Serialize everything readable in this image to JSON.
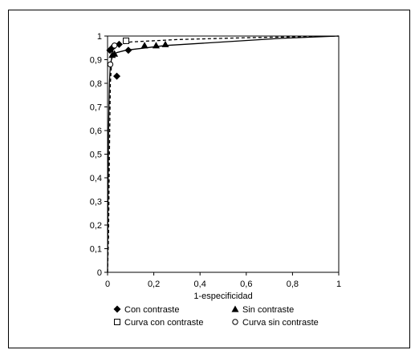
{
  "chart_data": {
    "type": "scatter",
    "title": "",
    "xlabel": "1-especificidad",
    "ylabel": "",
    "xlim": [
      0,
      1
    ],
    "ylim": [
      0,
      1
    ],
    "x_ticks": [
      "0",
      "0,2",
      "0,4",
      "0,6",
      "0,8",
      "1"
    ],
    "y_ticks": [
      "0",
      "0,1",
      "0,2",
      "0,3",
      "0,4",
      "0,5",
      "0,6",
      "0,7",
      "0,8",
      "0,9",
      "1"
    ],
    "grid": false,
    "legend_position": "bottom",
    "series": [
      {
        "name": "Con contraste",
        "marker": "diamond",
        "color": "#000000",
        "points": [
          [
            0.04,
            0.83
          ],
          [
            0.01,
            0.94
          ],
          [
            0.02,
            0.95
          ],
          [
            0.05,
            0.965
          ],
          [
            0.09,
            0.94
          ]
        ]
      },
      {
        "name": "Sin contraste",
        "marker": "triangle",
        "color": "#000000",
        "points": [
          [
            0.02,
            0.92
          ],
          [
            0.03,
            0.925
          ],
          [
            0.16,
            0.96
          ],
          [
            0.21,
            0.96
          ],
          [
            0.25,
            0.965
          ]
        ]
      },
      {
        "name": "Curva con contraste",
        "marker": "square-open",
        "line": "solid",
        "color": "#000000",
        "points": [
          [
            0,
            0
          ],
          [
            0.002,
            0.3
          ],
          [
            0.004,
            0.6
          ],
          [
            0.008,
            0.8
          ],
          [
            0.012,
            0.88
          ],
          [
            0.02,
            0.915
          ],
          [
            0.04,
            0.93
          ],
          [
            0.08,
            0.94
          ],
          [
            0.25,
            0.96
          ],
          [
            0.5,
            0.975
          ],
          [
            0.75,
            0.99
          ],
          [
            1,
            1
          ]
        ],
        "marker_points": [
          [
            0.08,
            0.98
          ]
        ]
      },
      {
        "name": "Curva sin contraste",
        "marker": "circle-open",
        "line": "dashed",
        "color": "#000000",
        "points": [
          [
            0,
            0
          ],
          [
            0.004,
            0.15
          ],
          [
            0.008,
            0.5
          ],
          [
            0.012,
            0.8
          ],
          [
            0.02,
            0.93
          ],
          [
            0.04,
            0.96
          ],
          [
            0.1,
            0.975
          ],
          [
            0.3,
            0.985
          ],
          [
            0.6,
            0.993
          ],
          [
            1,
            1
          ]
        ],
        "marker_points": [
          [
            0.012,
            0.88
          ],
          [
            0.03,
            0.96
          ]
        ]
      }
    ]
  }
}
